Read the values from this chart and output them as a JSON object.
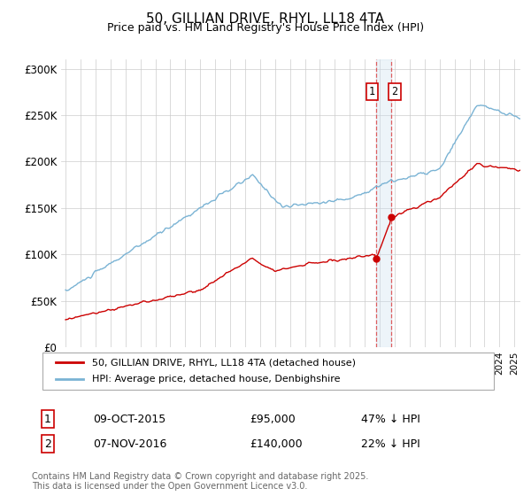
{
  "title": "50, GILLIAN DRIVE, RHYL, LL18 4TA",
  "subtitle": "Price paid vs. HM Land Registry's House Price Index (HPI)",
  "ylim": [
    0,
    310000
  ],
  "yticks": [
    0,
    50000,
    100000,
    150000,
    200000,
    250000,
    300000
  ],
  "ytick_labels": [
    "£0",
    "£50K",
    "£100K",
    "£150K",
    "£200K",
    "£250K",
    "£300K"
  ],
  "hpi_color": "#7ab3d4",
  "price_color": "#cc0000",
  "sale1_year": 2015,
  "sale1_month": 10,
  "sale1_price": 95000,
  "sale1_date": "09-OCT-2015",
  "sale1_label": "47% ↓ HPI",
  "sale2_year": 2016,
  "sale2_month": 11,
  "sale2_price": 140000,
  "sale2_date": "07-NOV-2016",
  "sale2_label": "22% ↓ HPI",
  "legend_line1": "50, GILLIAN DRIVE, RHYL, LL18 4TA (detached house)",
  "legend_line2": "HPI: Average price, detached house, Denbighshire",
  "footnote": "Contains HM Land Registry data © Crown copyright and database right 2025.\nThis data is licensed under the Open Government Licence v3.0.",
  "background_color": "#ffffff",
  "grid_color": "#cccccc",
  "vspan_color": "#cce0f0"
}
